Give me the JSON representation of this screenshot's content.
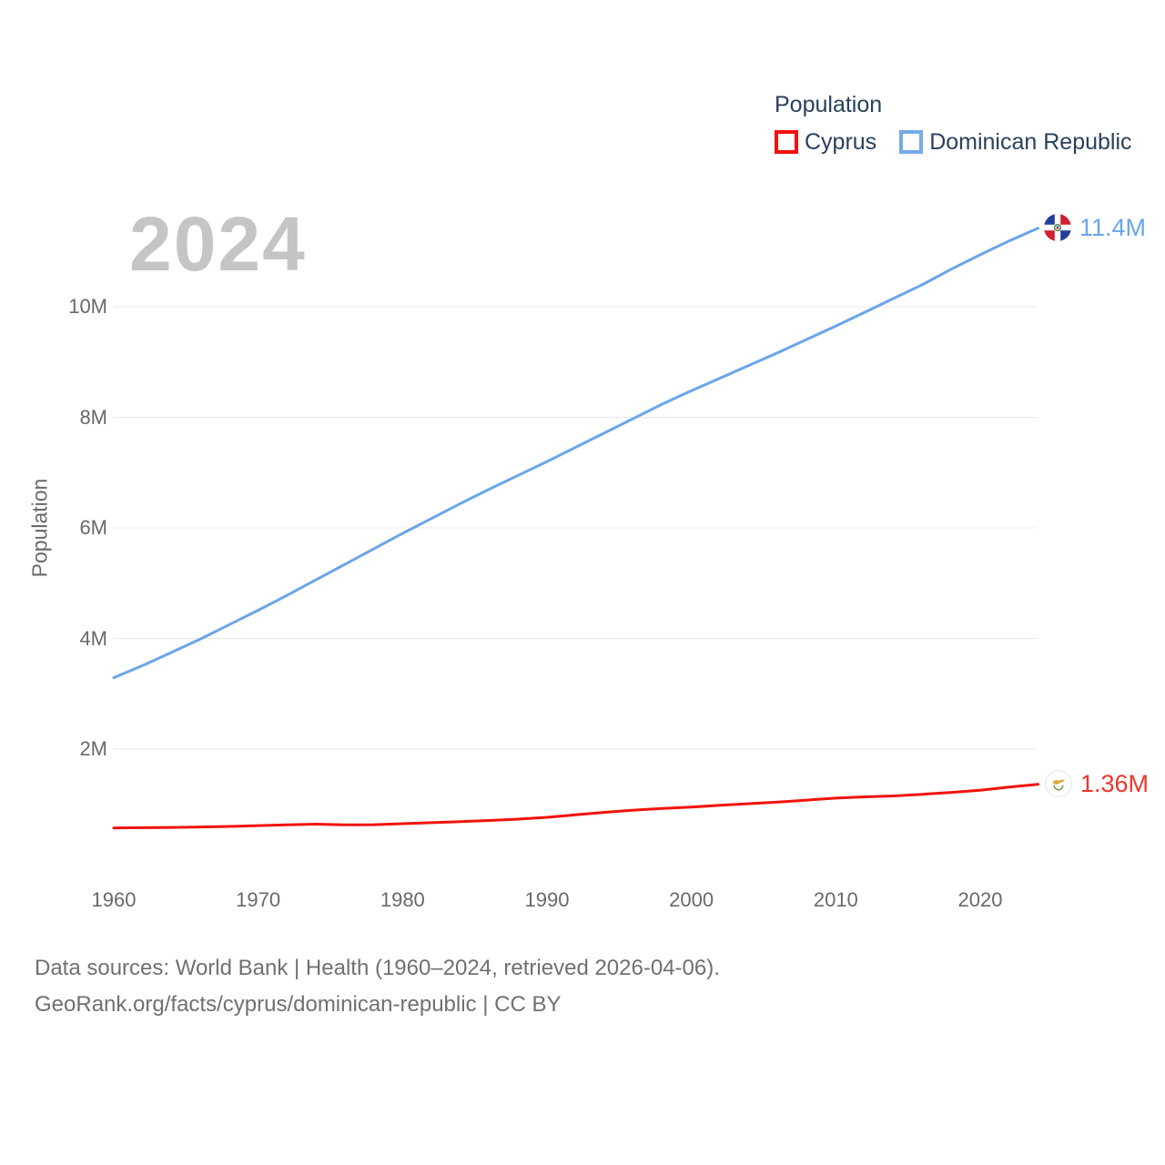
{
  "watermark": "2024",
  "legend": {
    "title": "Population",
    "items": [
      {
        "label": "Cyprus",
        "color": "#f3120c"
      },
      {
        "label": "Dominican Republic",
        "color": "#74abe9"
      }
    ]
  },
  "chart_data": {
    "type": "line",
    "title": "Population",
    "ylabel": "Population",
    "xlabel": "",
    "grid": "horizontal",
    "legend_position": "top-right",
    "xlim": [
      1960,
      2024
    ],
    "ylim": [
      0,
      11.9
    ],
    "x_ticks": [
      {
        "value": 1960,
        "label": "1960"
      },
      {
        "value": 1970,
        "label": "1970"
      },
      {
        "value": 1980,
        "label": "1980"
      },
      {
        "value": 1990,
        "label": "1990"
      },
      {
        "value": 2000,
        "label": "2000"
      },
      {
        "value": 2010,
        "label": "2010"
      },
      {
        "value": 2020,
        "label": "2020"
      }
    ],
    "y_ticks": [
      {
        "value": 2,
        "label": "2M"
      },
      {
        "value": 4,
        "label": "4M"
      },
      {
        "value": 6,
        "label": "6M"
      },
      {
        "value": 8,
        "label": "8M"
      },
      {
        "value": 10,
        "label": "10M"
      }
    ],
    "x": [
      1960,
      1962,
      1964,
      1966,
      1968,
      1970,
      1972,
      1974,
      1976,
      1978,
      1980,
      1982,
      1984,
      1986,
      1988,
      1990,
      1992,
      1994,
      1996,
      1998,
      2000,
      2002,
      2004,
      2006,
      2008,
      2010,
      2012,
      2014,
      2016,
      2018,
      2020,
      2022,
      2024
    ],
    "series": [
      {
        "name": "Cyprus",
        "color": "#f3120c",
        "end_label": "1.36M",
        "flag": "cyprus-flag-icon",
        "values": [
          0.573,
          0.577,
          0.583,
          0.591,
          0.601,
          0.615,
          0.63,
          0.642,
          0.628,
          0.632,
          0.65,
          0.668,
          0.688,
          0.708,
          0.732,
          0.766,
          0.812,
          0.856,
          0.896,
          0.926,
          0.951,
          0.982,
          1.012,
          1.042,
          1.076,
          1.112,
          1.135,
          1.153,
          1.182,
          1.217,
          1.256,
          1.312,
          1.362
        ]
      },
      {
        "name": "Dominican Republic",
        "color": "#6aa5e9",
        "end_label": "11.4M",
        "flag": "dominican-republic-flag-icon",
        "values": [
          3.29,
          3.51,
          3.75,
          3.99,
          4.25,
          4.51,
          4.78,
          5.06,
          5.34,
          5.62,
          5.9,
          6.17,
          6.44,
          6.7,
          6.95,
          7.2,
          7.46,
          7.72,
          7.98,
          8.24,
          8.48,
          8.71,
          8.94,
          9.17,
          9.41,
          9.65,
          9.9,
          10.15,
          10.4,
          10.68,
          10.94,
          11.19,
          11.42
        ]
      }
    ]
  },
  "footer": {
    "line1": "Data sources: World Bank | Health (1960–2024, retrieved 2026-04-06).",
    "line2": "GeoRank.org/facts/cyprus/dominican-republic | CC BY"
  },
  "colors": {
    "grid": "#e8e8e8",
    "tick_text": "#696969",
    "legend_text": "#2a405c",
    "watermark": "#c5c5c5",
    "footer_text": "#707070",
    "cyprus_line": "#f3120c",
    "dominican_line": "#6aa5e9"
  }
}
